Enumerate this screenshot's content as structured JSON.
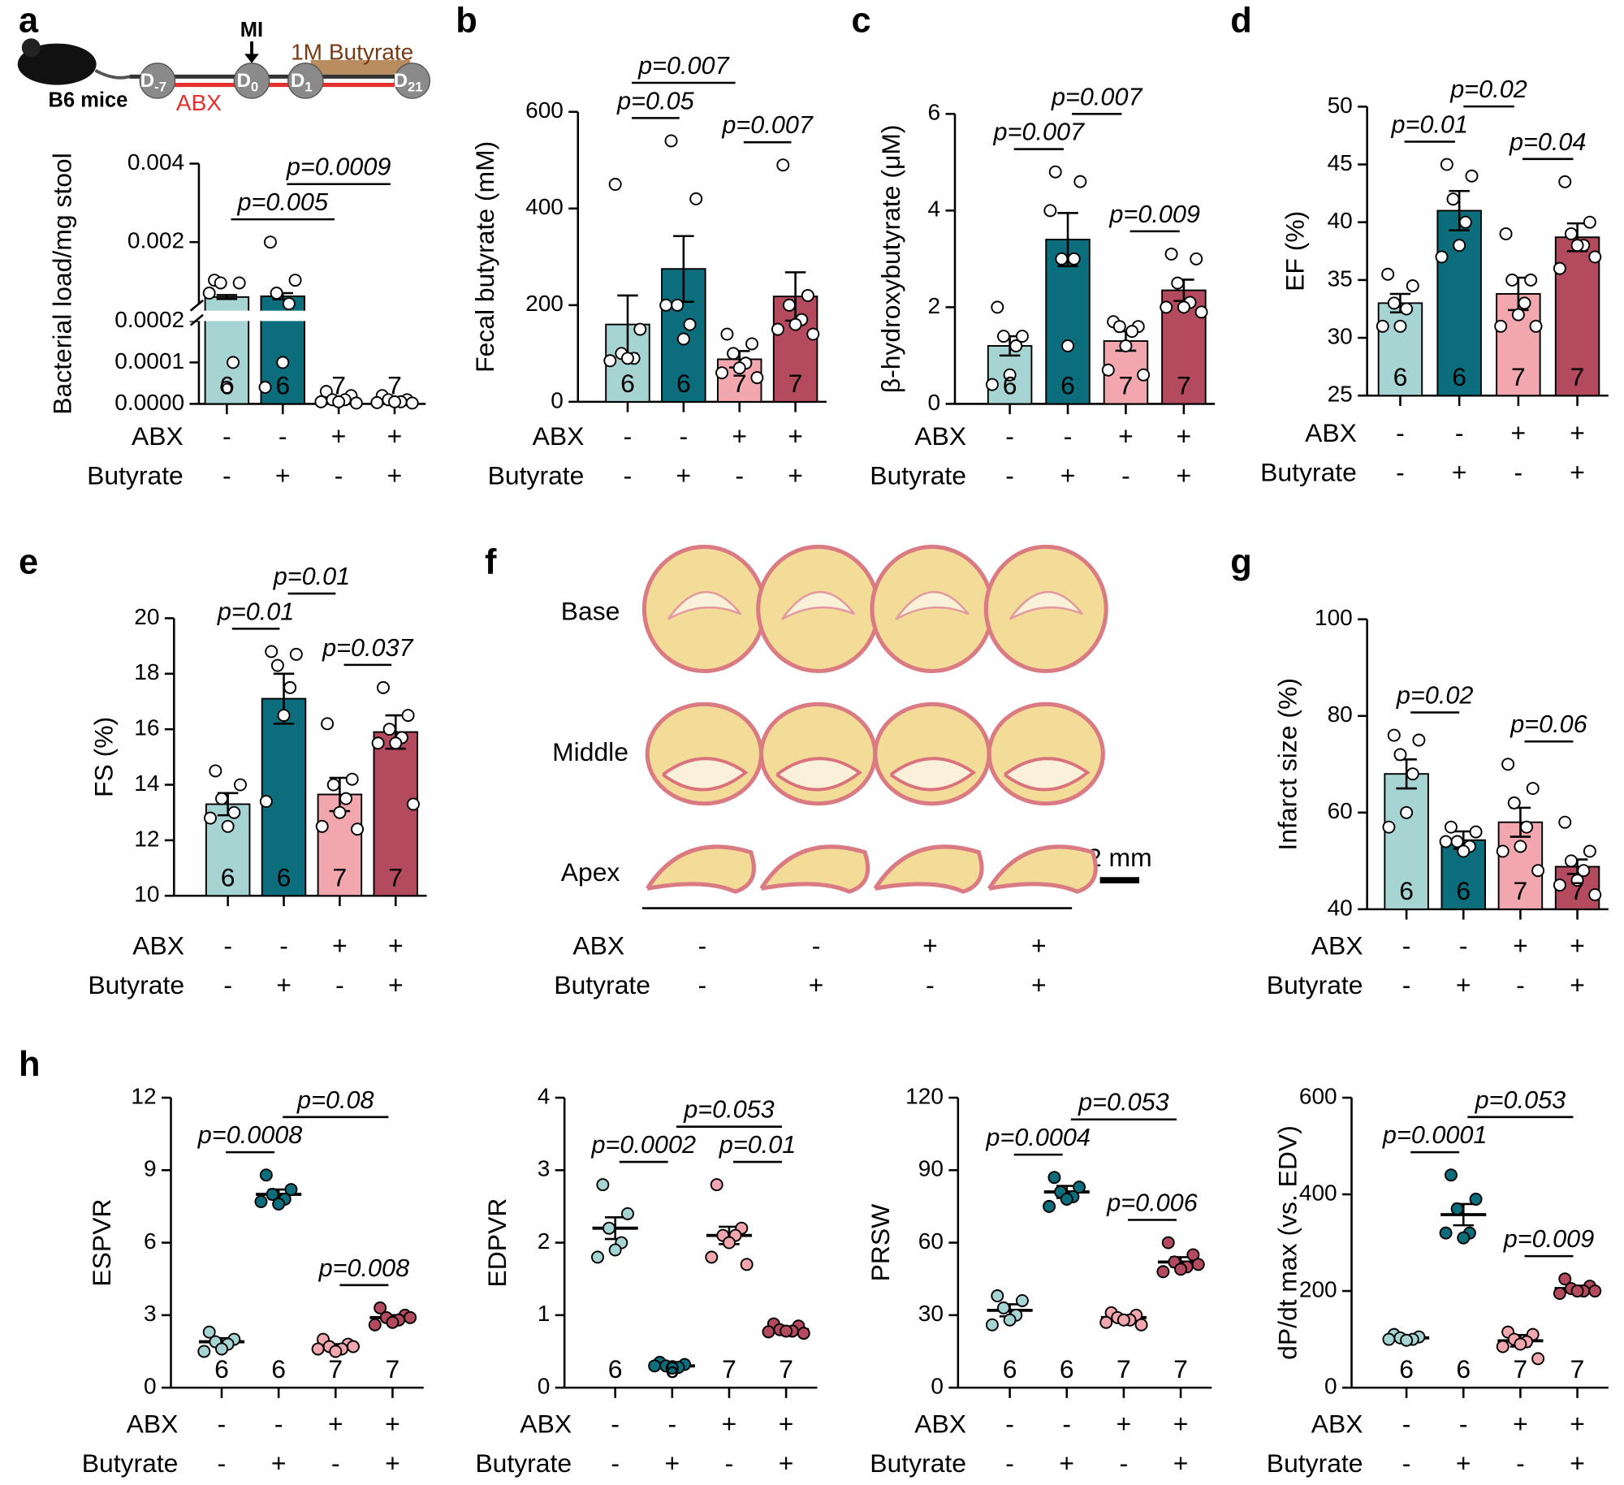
{
  "chart_data": [
    {
      "type": "bar",
      "label": "a",
      "ylabel": "Bacterial load/mg stool",
      "ylim": [
        0,
        0.004
      ],
      "ybreak": 0.0002,
      "yticks": [
        0.004,
        0.002,
        0.0002,
        0.0001,
        {
          "value": 0,
          "label": "0.0000"
        }
      ],
      "colors": [
        "#a6d4d2",
        "#0c6e7d",
        "#f2a6ad",
        "#b34a5d"
      ],
      "means": [
        0.0006,
        0.00062,
        1e-05,
        8e-06
      ],
      "sem": [
        5e-05,
        8e-05,
        4e-06,
        3e-06
      ],
      "points": [
        [
          0.00103,
          0.00096,
          0.00096,
          0.0001,
          4e-05,
          0.0007
        ],
        [
          0.002,
          0.00103,
          0.0007,
          0.00043,
          0.0001,
          4e-05
        ],
        [
          3e-05,
          2e-05,
          1e-05,
          1e-05,
          5e-06,
          5e-06,
          2e-06
        ],
        [
          2e-05,
          1e-05,
          1e-05,
          5e-06,
          5e-06,
          3e-06,
          2e-06
        ]
      ],
      "n": [
        6,
        6,
        7,
        7
      ],
      "rows": [
        {
          "name": "ABX",
          "signs": [
            "-",
            "-",
            "+",
            "+"
          ]
        },
        {
          "name": "Butyrate",
          "signs": [
            "-",
            "+",
            "-",
            "+"
          ]
        }
      ],
      "pvalues": [
        {
          "label": "p=0.005",
          "pair": [
            0,
            2
          ]
        },
        {
          "label": "p=0.0009",
          "pair": [
            1,
            3
          ]
        }
      ]
    },
    {
      "type": "bar",
      "label": "b",
      "ylabel": "Fecal butyrate (mM)",
      "ylim": [
        0,
        600
      ],
      "yticks": [
        0,
        200,
        400,
        600
      ],
      "colors": [
        "#a6d4d2",
        "#0c6e7d",
        "#f2a6ad",
        "#b34a5d"
      ],
      "means": [
        160,
        275,
        88,
        218
      ],
      "sem": [
        60,
        68,
        17,
        50
      ],
      "points": [
        [
          450,
          150,
          100,
          90,
          90,
          85
        ],
        [
          540,
          420,
          200,
          160,
          130,
          200
        ],
        [
          140,
          120,
          100,
          80,
          70,
          60,
          50
        ],
        [
          490,
          220,
          200,
          170,
          160,
          150,
          140
        ]
      ],
      "n": [
        6,
        6,
        7,
        7
      ],
      "rows": [
        {
          "name": "ABX",
          "signs": [
            "-",
            "-",
            "+",
            "+"
          ]
        },
        {
          "name": "Butyrate",
          "signs": [
            "-",
            "+",
            "-",
            "+"
          ]
        }
      ],
      "pvalues": [
        {
          "label": "p=0.05",
          "pair": [
            0,
            1
          ]
        },
        {
          "label": "p=0.007",
          "pair": [
            0,
            2
          ]
        },
        {
          "label": "p=0.007",
          "pair": [
            2,
            3
          ]
        }
      ]
    },
    {
      "type": "bar",
      "label": "c",
      "ylabel": "β-hydroxybutyrate (μM)",
      "ylim": [
        0,
        6
      ],
      "yticks": [
        0,
        2,
        4,
        6
      ],
      "colors": [
        "#a6d4d2",
        "#0c6e7d",
        "#f2a6ad",
        "#b34a5d"
      ],
      "means": [
        1.2,
        3.4,
        1.3,
        2.35
      ],
      "sem": [
        0.2,
        0.55,
        0.2,
        0.22
      ],
      "points": [
        [
          2.0,
          1.4,
          1.4,
          1.2,
          0.6,
          0.4
        ],
        [
          4.8,
          4.6,
          3.0,
          3.0,
          1.2,
          4.0
        ],
        [
          1.7,
          1.6,
          1.6,
          1.5,
          1.2,
          0.7,
          0.6
        ],
        [
          3.1,
          3.0,
          2.5,
          2.1,
          2.0,
          2.0,
          1.9
        ]
      ],
      "n": [
        6,
        6,
        7,
        7
      ],
      "rows": [
        {
          "name": "ABX",
          "signs": [
            "-",
            "-",
            "+",
            "+"
          ]
        },
        {
          "name": "Butyrate",
          "signs": [
            "-",
            "+",
            "-",
            "+"
          ]
        }
      ],
      "pvalues": [
        {
          "label": "p=0.007",
          "pair": [
            0,
            1
          ]
        },
        {
          "label": "p=0.007",
          "pair": [
            1,
            2
          ]
        },
        {
          "label": "p=0.009",
          "pair": [
            2,
            3
          ]
        }
      ]
    },
    {
      "type": "bar",
      "label": "d",
      "ylabel": "EF (%)",
      "ylim": [
        25,
        50
      ],
      "yticks": [
        25,
        30,
        35,
        40,
        45,
        50
      ],
      "colors": [
        "#a6d4d2",
        "#0c6e7d",
        "#f2a6ad",
        "#b34a5d"
      ],
      "means": [
        33,
        41,
        33.8,
        38.7
      ],
      "sem": [
        0.8,
        1.7,
        1.4,
        1.2
      ],
      "points": [
        [
          35.5,
          34.5,
          33,
          32.5,
          31,
          31
        ],
        [
          45,
          44,
          42,
          40,
          38,
          37
        ],
        [
          39,
          35,
          35,
          33,
          32,
          31,
          31
        ],
        [
          43.5,
          40,
          39,
          38,
          38,
          36,
          37
        ]
      ],
      "n": [
        6,
        6,
        7,
        7
      ],
      "rows": [
        {
          "name": "ABX",
          "signs": [
            "-",
            "-",
            "+",
            "+"
          ]
        },
        {
          "name": "Butyrate",
          "signs": [
            "-",
            "+",
            "-",
            "+"
          ]
        }
      ],
      "pvalues": [
        {
          "label": "p=0.01",
          "pair": [
            0,
            1
          ]
        },
        {
          "label": "p=0.02",
          "pair": [
            1,
            2
          ]
        },
        {
          "label": "p=0.04",
          "pair": [
            2,
            3
          ]
        }
      ]
    },
    {
      "type": "bar",
      "label": "e",
      "ylabel": "FS (%)",
      "ylim": [
        10,
        20
      ],
      "yticks": [
        10,
        12,
        14,
        16,
        18,
        20
      ],
      "colors": [
        "#a6d4d2",
        "#0c6e7d",
        "#f2a6ad",
        "#b34a5d"
      ],
      "means": [
        13.3,
        17.1,
        13.65,
        15.9
      ],
      "sem": [
        0.4,
        0.9,
        0.6,
        0.6
      ],
      "points": [
        [
          14.5,
          14,
          13.5,
          13,
          12.5,
          12.8
        ],
        [
          18.8,
          18.7,
          18.3,
          17.5,
          16.5,
          13.4
        ],
        [
          16.2,
          14.2,
          14,
          13.5,
          13,
          12.5,
          12.4
        ],
        [
          17.5,
          16.5,
          16,
          15.7,
          15.5,
          15.5,
          13.3
        ]
      ],
      "n": [
        6,
        6,
        7,
        7
      ],
      "rows": [
        {
          "name": "ABX",
          "signs": [
            "-",
            "-",
            "+",
            "+"
          ]
        },
        {
          "name": "Butyrate",
          "signs": [
            "-",
            "+",
            "-",
            "+"
          ]
        }
      ],
      "pvalues": [
        {
          "label": "p=0.01",
          "pair": [
            0,
            1
          ]
        },
        {
          "label": "p=0.01",
          "pair": [
            1,
            2
          ]
        },
        {
          "label": "p=0.037",
          "pair": [
            2,
            3
          ]
        }
      ]
    },
    {
      "type": "bar",
      "label": "g",
      "ylabel": "Infarct size (%)",
      "ylim": [
        40,
        100
      ],
      "yticks": [
        40,
        60,
        80,
        100
      ],
      "colors": [
        "#a6d4d2",
        "#0c6e7d",
        "#f2a6ad",
        "#b34a5d"
      ],
      "means": [
        68,
        54.3,
        58,
        48.8
      ],
      "sem": [
        3,
        1.8,
        3,
        1.5
      ],
      "points": [
        [
          76,
          75,
          72,
          68,
          60,
          57
        ],
        [
          57,
          56,
          54,
          53,
          52,
          54
        ],
        [
          70,
          65,
          62,
          57,
          53,
          52,
          48
        ],
        [
          58,
          52,
          50,
          48,
          46,
          45,
          43
        ]
      ],
      "n": [
        6,
        6,
        7,
        7
      ],
      "rows": [
        {
          "name": "ABX",
          "signs": [
            "-",
            "-",
            "+",
            "+"
          ]
        },
        {
          "name": "Butyrate",
          "signs": [
            "-",
            "+",
            "-",
            "+"
          ]
        }
      ],
      "pvalues": [
        {
          "label": "p=0.02",
          "pair": [
            0,
            1
          ]
        },
        {
          "label": "p=0.06",
          "pair": [
            2,
            3
          ]
        }
      ]
    },
    {
      "type": "dot",
      "label": "h",
      "ylabel": "ESPVR",
      "ylim": [
        0,
        12
      ],
      "yticks": [
        0,
        3,
        6,
        9,
        12
      ],
      "colors": [
        "#a6d4d2",
        "#0c6e7d",
        "#f2a6ad",
        "#b34a5d"
      ],
      "means": [
        1.9,
        8.0,
        1.7,
        2.9
      ],
      "sem": [
        0.15,
        0.2,
        0.1,
        0.1
      ],
      "points": [
        [
          2.3,
          2.0,
          1.9,
          1.8,
          1.6,
          1.5
        ],
        [
          8.8,
          8.2,
          8.0,
          7.8,
          7.6,
          7.7
        ],
        [
          2.0,
          1.8,
          1.7,
          1.6,
          1.5,
          1.6,
          1.7
        ],
        [
          3.3,
          3.0,
          2.9,
          2.8,
          2.7,
          2.6,
          2.9
        ]
      ],
      "n": [
        6,
        6,
        7,
        7
      ],
      "rows": [
        {
          "name": "ABX",
          "signs": [
            "-",
            "-",
            "+",
            "+"
          ]
        },
        {
          "name": "Butyrate",
          "signs": [
            "-",
            "+",
            "-",
            "+"
          ]
        }
      ],
      "pvalues": [
        {
          "label": "p=0.0008",
          "pair": [
            0,
            1
          ]
        },
        {
          "label": "p=0.08",
          "pair": [
            1,
            3
          ]
        },
        {
          "label": "p=0.008",
          "pair": [
            2,
            3
          ]
        }
      ]
    },
    {
      "type": "dot",
      "ylabel": "EDPVR",
      "ylim": [
        0,
        4
      ],
      "yticks": [
        0,
        1,
        2,
        3,
        4
      ],
      "colors": [
        "#a6d4d2",
        "#0c6e7d",
        "#f2a6ad",
        "#b34a5d"
      ],
      "means": [
        2.2,
        0.3,
        2.1,
        0.8
      ],
      "sem": [
        0.15,
        0.02,
        0.12,
        0.03
      ],
      "points": [
        [
          2.8,
          2.4,
          2.2,
          2.0,
          1.9,
          1.8
        ],
        [
          0.35,
          0.32,
          0.3,
          0.28,
          0.27,
          0.3
        ],
        [
          2.8,
          2.2,
          2.1,
          2.1,
          2.0,
          1.8,
          1.7
        ],
        [
          0.88,
          0.85,
          0.8,
          0.78,
          0.78,
          0.77,
          0.75
        ]
      ],
      "n": [
        6,
        6,
        7,
        7
      ],
      "rows": [
        {
          "name": "ABX",
          "signs": [
            "-",
            "-",
            "+",
            "+"
          ]
        },
        {
          "name": "Butyrate",
          "signs": [
            "-",
            "+",
            "-",
            "+"
          ]
        }
      ],
      "pvalues": [
        {
          "label": "p=0.0002",
          "pair": [
            0,
            1
          ]
        },
        {
          "label": "p=0.053",
          "pair": [
            1,
            3
          ]
        },
        {
          "label": "p=0.01",
          "pair": [
            2,
            3
          ]
        }
      ]
    },
    {
      "type": "dot",
      "ylabel": "PRSW",
      "ylim": [
        0,
        120
      ],
      "yticks": [
        0,
        30,
        60,
        90,
        120
      ],
      "colors": [
        "#a6d4d2",
        "#0c6e7d",
        "#f2a6ad",
        "#b34a5d"
      ],
      "means": [
        32,
        81,
        29,
        52
      ],
      "sem": [
        2.5,
        2.5,
        1,
        2
      ],
      "points": [
        [
          38,
          36,
          33,
          30,
          28,
          26
        ],
        [
          87,
          83,
          81,
          79,
          78,
          75
        ],
        [
          31,
          30,
          29,
          28,
          28,
          27,
          26
        ],
        [
          60,
          55,
          52,
          50,
          49,
          48,
          51
        ]
      ],
      "n": [
        6,
        6,
        7,
        7
      ],
      "rows": [
        {
          "name": "ABX",
          "signs": [
            "-",
            "-",
            "+",
            "+"
          ]
        },
        {
          "name": "Butyrate",
          "signs": [
            "-",
            "+",
            "-",
            "+"
          ]
        }
      ],
      "pvalues": [
        {
          "label": "p=0.0004",
          "pair": [
            0,
            1
          ]
        },
        {
          "label": "p=0.053",
          "pair": [
            1,
            3
          ]
        },
        {
          "label": "p=0.006",
          "pair": [
            2,
            3
          ]
        }
      ]
    },
    {
      "type": "dot",
      "ylabel": "dP/dt max (vs. EDV)",
      "ylim": [
        0,
        600
      ],
      "yticks": [
        0,
        200,
        400,
        600
      ],
      "colors": [
        "#a6d4d2",
        "#0c6e7d",
        "#f2a6ad",
        "#b34a5d"
      ],
      "means": [
        103,
        358,
        97,
        205
      ],
      "sem": [
        5,
        22,
        12,
        6
      ],
      "points": [
        [
          110,
          105,
          103,
          100,
          98,
          100
        ],
        [
          440,
          390,
          370,
          320,
          310,
          320
        ],
        [
          115,
          110,
          100,
          95,
          90,
          85,
          60
        ],
        [
          225,
          210,
          205,
          200,
          200,
          195,
          200
        ]
      ],
      "n": [
        6,
        6,
        7,
        7
      ],
      "rows": [
        {
          "name": "ABX",
          "signs": [
            "-",
            "-",
            "+",
            "+"
          ]
        },
        {
          "name": "Butyrate",
          "signs": [
            "-",
            "+",
            "-",
            "+"
          ]
        }
      ],
      "pvalues": [
        {
          "label": "p=0.0001",
          "pair": [
            0,
            1
          ]
        },
        {
          "label": "p=0.053",
          "pair": [
            1,
            3
          ]
        },
        {
          "label": "p=0.009",
          "pair": [
            2,
            3
          ]
        }
      ]
    }
  ],
  "schematic": {
    "mouse_label": "B6 mice",
    "event": "MI",
    "abx": "ABX",
    "treatment": "1M Butyrate",
    "days": [
      {
        "main": "D",
        "sub": "-7"
      },
      {
        "main": "D",
        "sub": "0"
      },
      {
        "main": "D",
        "sub": "1"
      },
      {
        "main": "D",
        "sub": "21"
      }
    ]
  },
  "histology": {
    "label": "f",
    "sections": [
      "Base",
      "Middle",
      "Apex"
    ],
    "scale": "2 mm",
    "rows": [
      {
        "name": "ABX",
        "signs": [
          "-",
          "-",
          "+",
          "+"
        ]
      },
      {
        "name": "Butyrate",
        "signs": [
          "-",
          "+",
          "-",
          "+"
        ]
      }
    ]
  }
}
